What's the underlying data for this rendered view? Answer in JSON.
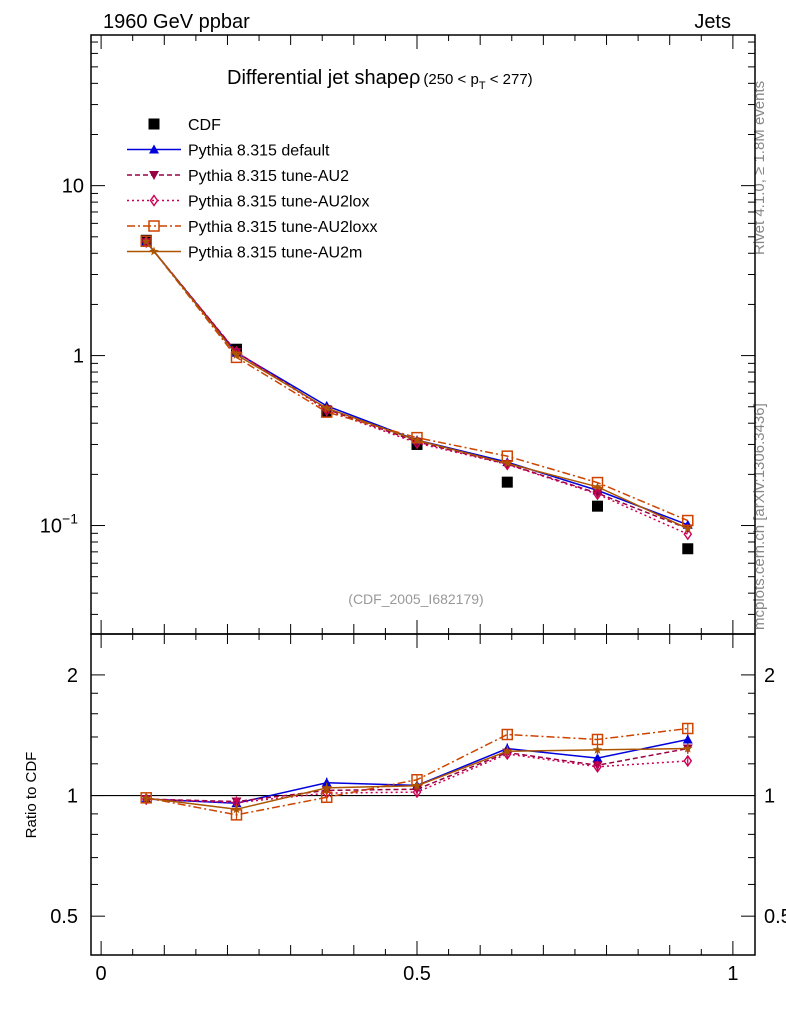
{
  "header": {
    "left": "1960 GeV ppbar",
    "right": "Jets"
  },
  "side": {
    "rivet": "Rivet 4.1.0, ≥ 1.8M events",
    "mcplots": "mcplots.cern.ch [arXiv:1306.3436]"
  },
  "analysis_id": "(CDF_2005_I682179)",
  "chart_data": [
    {
      "type": "line",
      "title": "Differential jet shape",
      "title_symbol": "ρ",
      "title_range_pre": "(250 < p",
      "title_range_sub": "T",
      "title_range_post": " < 277)",
      "yscale": "log",
      "xlim": [
        -0.016,
        1.035
      ],
      "ylim": [
        0.023,
        77
      ],
      "yticks": [
        {
          "v": 10,
          "label": "10"
        },
        {
          "v": 1,
          "label": "1"
        },
        {
          "v": 0.1,
          "label": "10",
          "sup": "−1"
        }
      ],
      "legend_position": "top-left",
      "x": [
        0.0714,
        0.2143,
        0.3571,
        0.5,
        0.6429,
        0.7857,
        0.9286
      ],
      "series": [
        {
          "name": "CDF",
          "color": "#000000",
          "marker": "square-filled",
          "line": "none",
          "values": [
            4.77,
            1.09,
            0.47,
            0.3,
            0.18,
            0.13,
            0.073
          ]
        },
        {
          "name": "Pythia 8.315 default",
          "color": "#0000dd",
          "marker": "triangle-up",
          "line": "solid",
          "values": [
            4.67,
            1.04,
            0.506,
            0.318,
            0.236,
            0.161,
            0.101
          ]
        },
        {
          "name": "Pythia 8.315 tune-AU2",
          "color": "#990044",
          "marker": "triangle-down",
          "line": "dashed",
          "values": [
            4.67,
            1.05,
            0.484,
            0.311,
            0.23,
            0.155,
            0.096
          ]
        },
        {
          "name": "Pythia 8.315 tune-AU2lox",
          "color": "#cc0055",
          "marker": "diamond-open",
          "line": "dotted",
          "values": [
            4.67,
            1.05,
            0.477,
            0.306,
            0.229,
            0.153,
            0.089
          ]
        },
        {
          "name": "Pythia 8.315 tune-AU2loxx",
          "color": "#cc4400",
          "marker": "square-open",
          "line": "dashdot",
          "values": [
            4.71,
            0.976,
            0.465,
            0.329,
            0.256,
            0.179,
            0.107
          ]
        },
        {
          "name": "Pythia 8.315 tune-AU2m",
          "color": "#aa5500",
          "marker": "star",
          "line": "solid",
          "values": [
            4.7,
            1.01,
            0.491,
            0.317,
            0.232,
            0.169,
            0.096
          ]
        }
      ]
    },
    {
      "type": "line",
      "ylabel": "Ratio to CDF",
      "yscale": "log",
      "xlim": [
        -0.016,
        1.035
      ],
      "ylim": [
        0.4,
        2.53
      ],
      "yticks": [
        {
          "v": 2,
          "label": "2"
        },
        {
          "v": 1,
          "label": "1"
        },
        {
          "v": 0.5,
          "label": "0.5"
        }
      ],
      "xticks": [
        {
          "v": 0,
          "label": "0"
        },
        {
          "v": 0.5,
          "label": "0.5"
        },
        {
          "v": 1,
          "label": "1"
        }
      ],
      "x": [
        0.0714,
        0.2143,
        0.3571,
        0.5,
        0.6429,
        0.7857,
        0.9286
      ],
      "series": [
        {
          "name": "Pythia 8.315 default",
          "values": [
            0.98,
            0.957,
            1.076,
            1.06,
            1.31,
            1.24,
            1.38
          ]
        },
        {
          "name": "Pythia 8.315 tune-AU2",
          "values": [
            0.98,
            0.966,
            1.03,
            1.037,
            1.28,
            1.19,
            1.31
          ]
        },
        {
          "name": "Pythia 8.315 tune-AU2lox",
          "values": [
            0.98,
            0.96,
            1.014,
            1.02,
            1.27,
            1.18,
            1.22
          ]
        },
        {
          "name": "Pythia 8.315 tune-AU2loxx",
          "values": [
            0.987,
            0.895,
            0.99,
            1.095,
            1.42,
            1.38,
            1.47
          ]
        },
        {
          "name": "Pythia 8.315 tune-AU2m",
          "values": [
            0.985,
            0.924,
            1.045,
            1.058,
            1.29,
            1.3,
            1.31
          ]
        }
      ]
    }
  ]
}
